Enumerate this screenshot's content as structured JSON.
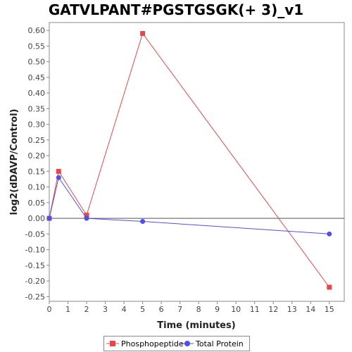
{
  "chart_data": {
    "type": "line",
    "title": "GATVLPANT#PGSTGSGK(+ 3)_v1",
    "xlabel": "Time (minutes)",
    "ylabel": "log2(dDAVP/Control)",
    "xlim": [
      0,
      15.8
    ],
    "ylim": [
      -0.265,
      0.625
    ],
    "x_ticks": [
      "0",
      "1",
      "2",
      "3",
      "4",
      "5",
      "6",
      "7",
      "8",
      "9",
      "10",
      "11",
      "12",
      "13",
      "14",
      "15"
    ],
    "y_ticks": [
      "0.60",
      "0.55",
      "0.50",
      "0.45",
      "0.40",
      "0.35",
      "0.30",
      "0.25",
      "0.20",
      "0.15",
      "0.10",
      "0.05",
      "0.00",
      "-0.05",
      "-0.10",
      "-0.15",
      "-0.20",
      "-0.25"
    ],
    "legend_position": "bottom",
    "series": [
      {
        "name": "Phosphopeptide",
        "color": "#e8474a",
        "marker": "square",
        "x": [
          0,
          0.5,
          2,
          5,
          15
        ],
        "y": [
          0.0,
          0.15,
          0.01,
          0.59,
          -0.22
        ]
      },
      {
        "name": "Total Protein",
        "color": "#5050e8",
        "marker": "circle",
        "x": [
          0,
          0.5,
          2,
          5,
          15
        ],
        "y": [
          0.0,
          0.13,
          0.0,
          -0.01,
          -0.05
        ]
      }
    ]
  }
}
